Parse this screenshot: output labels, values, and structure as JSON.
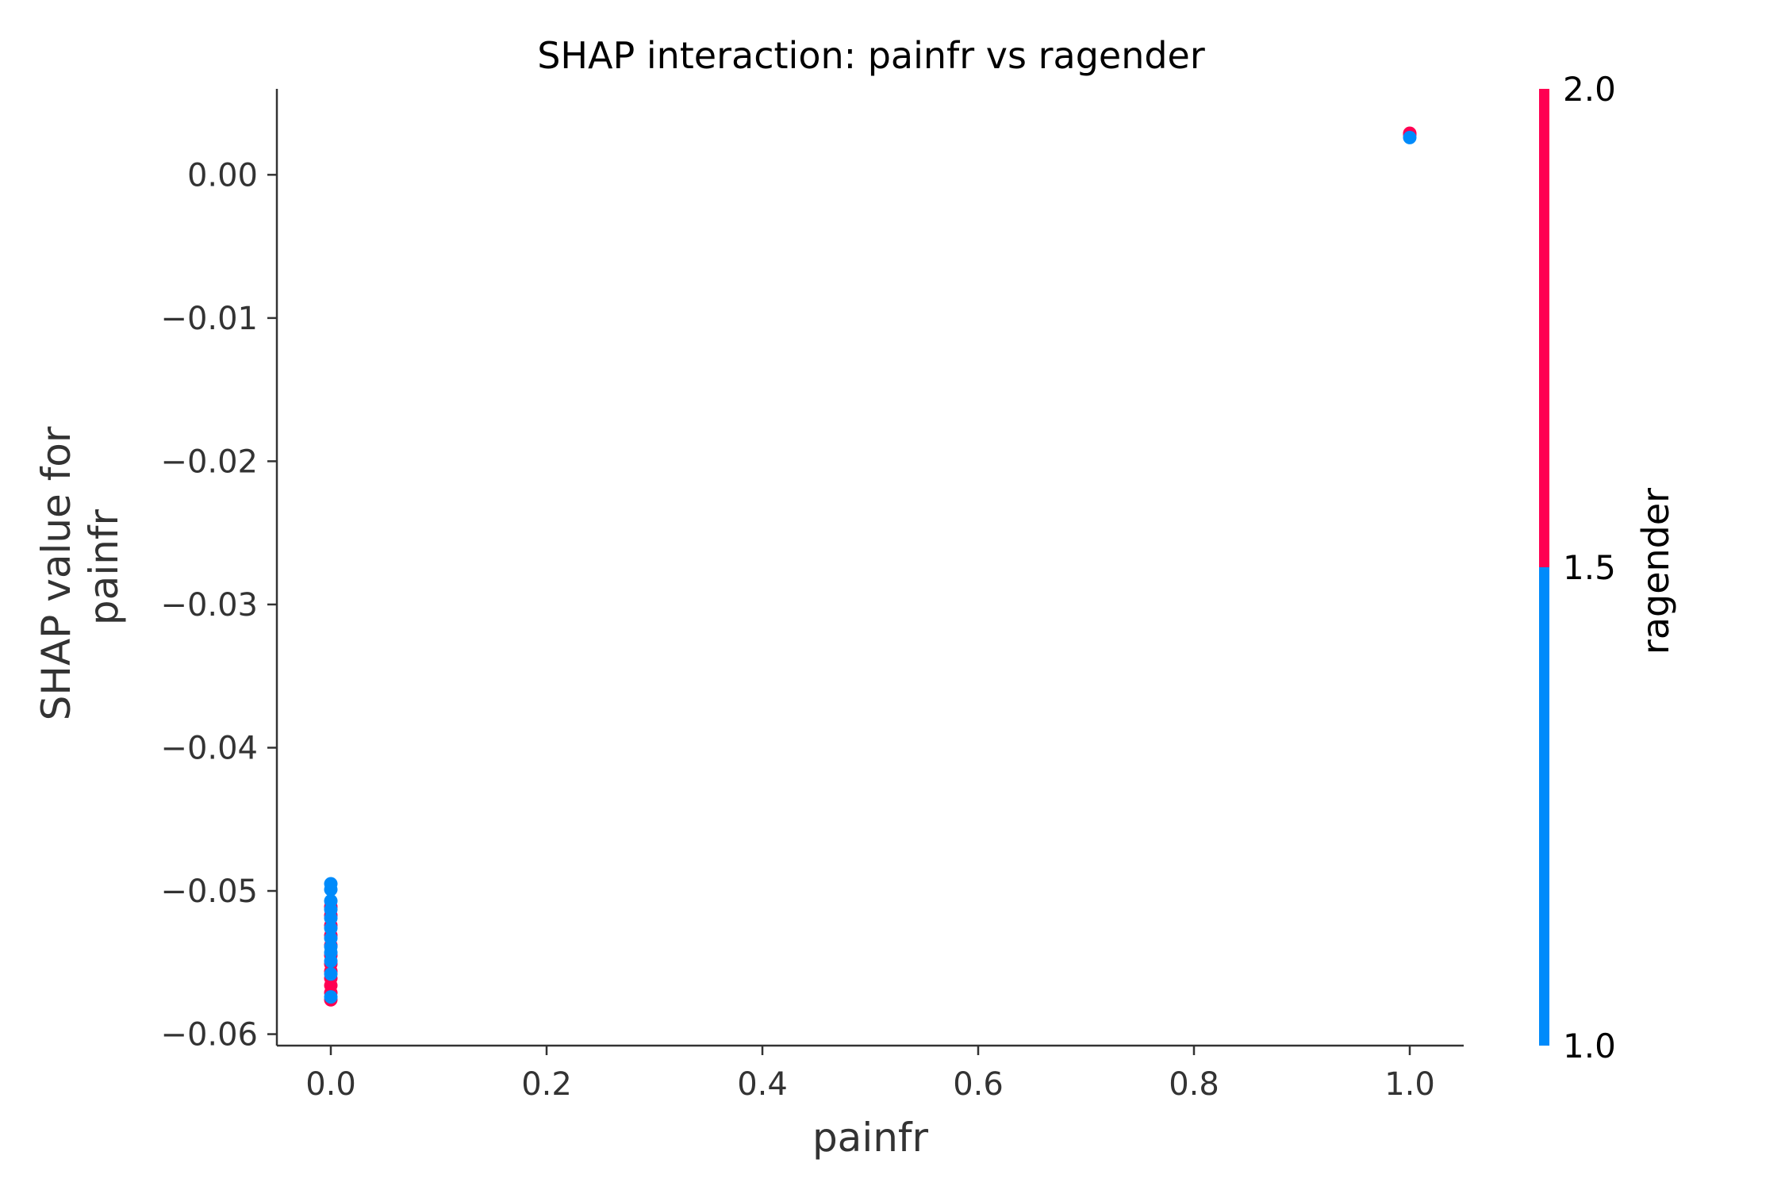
{
  "chart_data": {
    "type": "scatter",
    "title": "SHAP interaction: painfr vs ragender",
    "xlabel": "painfr",
    "ylabel_lines": [
      "SHAP value for",
      "painfr"
    ],
    "xlim": [
      -0.05,
      1.05
    ],
    "ylim": [
      -0.0608,
      0.006
    ],
    "x_ticks": [
      0.0,
      0.2,
      0.4,
      0.6,
      0.8,
      1.0
    ],
    "x_tick_labels": [
      "0.0",
      "0.2",
      "0.4",
      "0.6",
      "0.8",
      "1.0"
    ],
    "y_ticks": [
      0.0,
      -0.01,
      -0.02,
      -0.03,
      -0.04,
      -0.05,
      -0.06
    ],
    "y_tick_labels": [
      "0.00",
      "−0.01",
      "−0.02",
      "−0.03",
      "−0.04",
      "−0.05",
      "−0.06"
    ],
    "grid": false,
    "colorbar": {
      "label": "ragender",
      "range": [
        1.0,
        2.0
      ],
      "ticks": [
        1.0,
        1.5,
        2.0
      ],
      "tick_labels": [
        "1.0",
        "1.5",
        "2.0"
      ],
      "low_color": "#008bfb",
      "high_color": "#ff0052"
    },
    "colors": {
      "ragender_1": "#008bfb",
      "ragender_2": "#ff0052",
      "axis": "#333333"
    },
    "series": [
      {
        "ragender": 2.0,
        "points": [
          {
            "x": 0.0,
            "y": -0.0511
          },
          {
            "x": 0.0,
            "y": -0.0517
          },
          {
            "x": 0.0,
            "y": -0.0524
          },
          {
            "x": 0.0,
            "y": -0.0531
          },
          {
            "x": 0.0,
            "y": -0.0538
          },
          {
            "x": 0.0,
            "y": -0.0545
          },
          {
            "x": 0.0,
            "y": -0.0551
          },
          {
            "x": 0.0,
            "y": -0.0556
          },
          {
            "x": 0.0,
            "y": -0.0561
          },
          {
            "x": 0.0,
            "y": -0.0566
          },
          {
            "x": 0.0,
            "y": -0.0571
          },
          {
            "x": 0.0,
            "y": -0.0576
          },
          {
            "x": 1.0,
            "y": 0.0029
          },
          {
            "x": 1.0,
            "y": 0.0028
          }
        ]
      },
      {
        "ragender": 1.0,
        "points": [
          {
            "x": 0.0,
            "y": -0.0495
          },
          {
            "x": 0.0,
            "y": -0.0499
          },
          {
            "x": 0.0,
            "y": -0.0507
          },
          {
            "x": 0.0,
            "y": -0.0513
          },
          {
            "x": 0.0,
            "y": -0.0519
          },
          {
            "x": 0.0,
            "y": -0.0526
          },
          {
            "x": 0.0,
            "y": -0.0533
          },
          {
            "x": 0.0,
            "y": -0.0539
          },
          {
            "x": 0.0,
            "y": -0.0543
          },
          {
            "x": 0.0,
            "y": -0.0549
          },
          {
            "x": 0.0,
            "y": -0.0558
          },
          {
            "x": 0.0,
            "y": -0.0574
          },
          {
            "x": 1.0,
            "y": 0.0026
          }
        ]
      }
    ]
  }
}
